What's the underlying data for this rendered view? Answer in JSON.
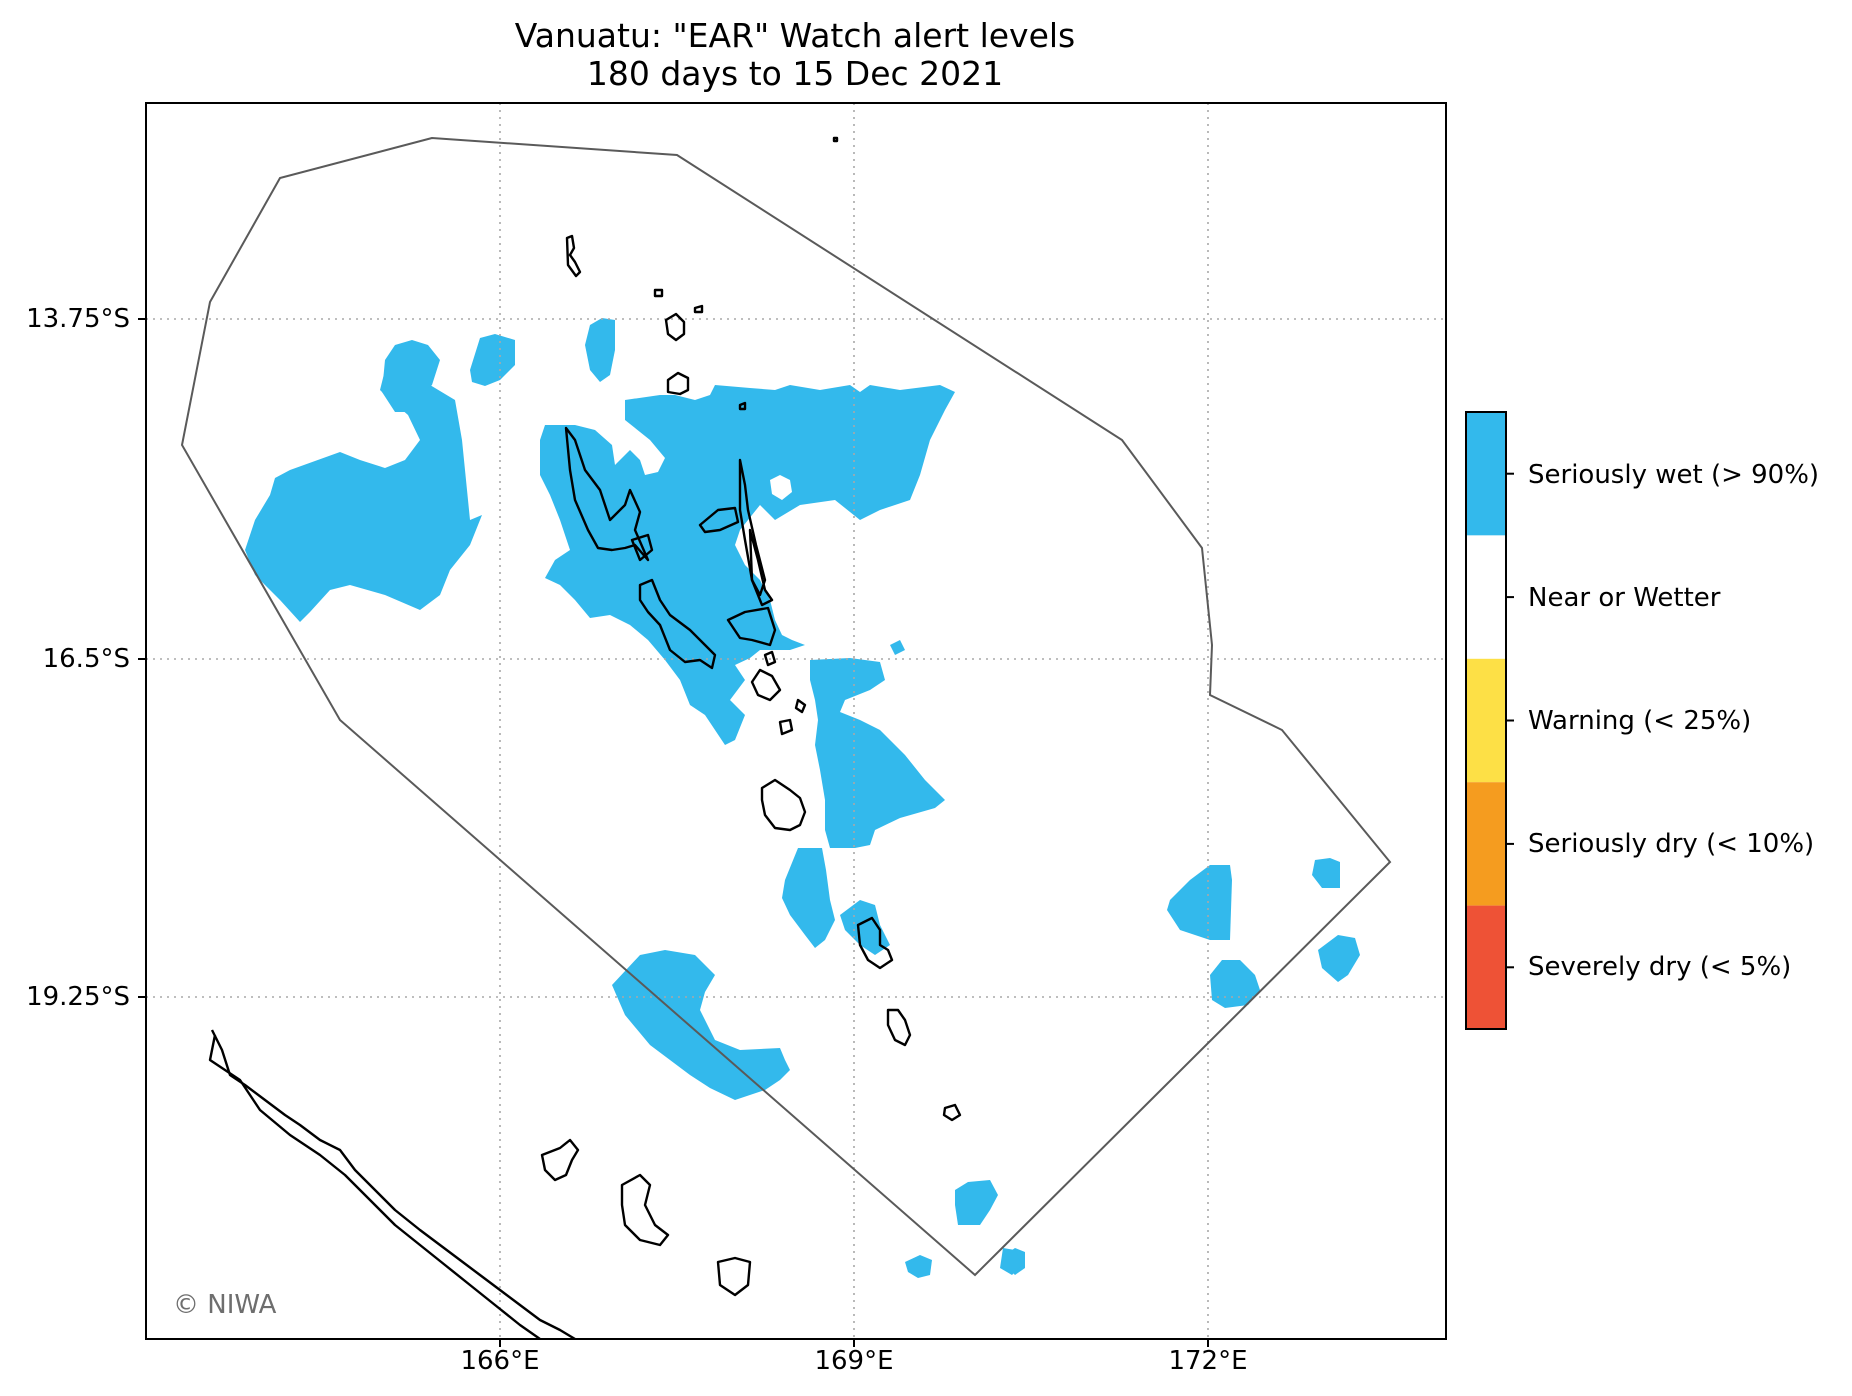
{
  "title": {
    "line1": "Vanuatu: \"EAR\" Watch alert levels",
    "line2": "180 days to 15 Dec 2021"
  },
  "axes": {
    "longitude_ticks": [
      "166°E",
      "169°E",
      "172°E"
    ],
    "latitude_ticks": [
      "13.75°S",
      "16.5°S",
      "19.25°S"
    ],
    "gridlines": true
  },
  "legend": {
    "placement": "right",
    "categories": [
      {
        "label": "Seriously wet (> 90%)",
        "color": "#33b9ec"
      },
      {
        "label": "Near or Wetter",
        "color": "#ffffff"
      },
      {
        "label": "Warning (< 25%)",
        "color": "#fde046"
      },
      {
        "label": "Seriously dry (< 10%)",
        "color": "#f59c1f"
      },
      {
        "label": "Severely dry (< 5%)",
        "color": "#ee5236"
      }
    ]
  },
  "colors": {
    "wet_region": "#33b9ec",
    "eez_outline": "#5a5a5a",
    "coastline": "#000000",
    "copyright": "#6e6e6e"
  },
  "copyright": "© NIWA"
}
